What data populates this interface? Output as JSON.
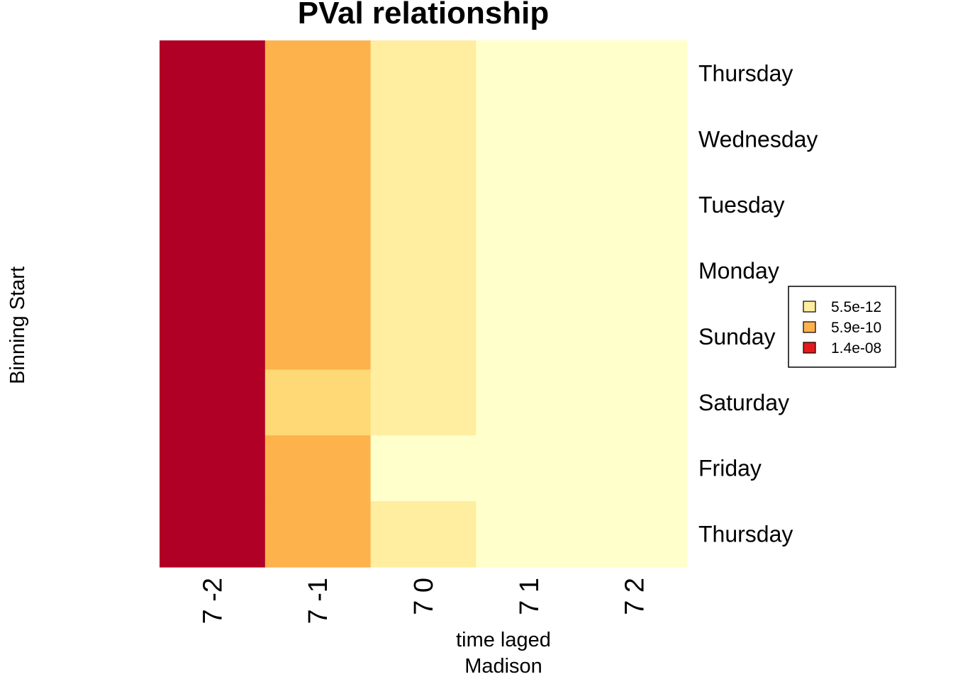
{
  "chart_data": {
    "type": "heatmap",
    "title": "PVal relationship",
    "xlabel": "time laged",
    "xlabel2": "Madison",
    "ylabel": "Binning Start",
    "columns": [
      "7 -2",
      "7 -1",
      "7 0",
      "7 1",
      "7 2"
    ],
    "rows": [
      "Thursday",
      "Wednesday",
      "Tuesday",
      "Monday",
      "Sunday",
      "Saturday",
      "Friday",
      "Thursday"
    ],
    "cell_colors": [
      [
        "#B10026",
        "#FEB24C",
        "#FFEDA0",
        "#FFFFCC",
        "#FFFFCC"
      ],
      [
        "#B10026",
        "#FEB24C",
        "#FFEDA0",
        "#FFFFCC",
        "#FFFFCC"
      ],
      [
        "#B10026",
        "#FEB24C",
        "#FFEDA0",
        "#FFFFCC",
        "#FFFFCC"
      ],
      [
        "#B10026",
        "#FEB24C",
        "#FFEDA0",
        "#FFFFCC",
        "#FFFFCC"
      ],
      [
        "#B10026",
        "#FEB24C",
        "#FFEDA0",
        "#FFFFCC",
        "#FFFFCC"
      ],
      [
        "#B10026",
        "#FED976",
        "#FFEDA0",
        "#FFFFCC",
        "#FFFFCC"
      ],
      [
        "#B10026",
        "#FEB24C",
        "#FFFFCC",
        "#FFFFCC",
        "#FFFFCC"
      ],
      [
        "#B10026",
        "#FEB24C",
        "#FFEDA0",
        "#FFFFCC",
        "#FFFFCC"
      ]
    ],
    "legend": {
      "placement": "right",
      "entries": [
        {
          "label": "5.5e-12",
          "color": "#FFEDA0"
        },
        {
          "label": "5.9e-10",
          "color": "#FEB24C"
        },
        {
          "label": "1.4e-08",
          "color": "#E31A1C"
        }
      ]
    }
  }
}
